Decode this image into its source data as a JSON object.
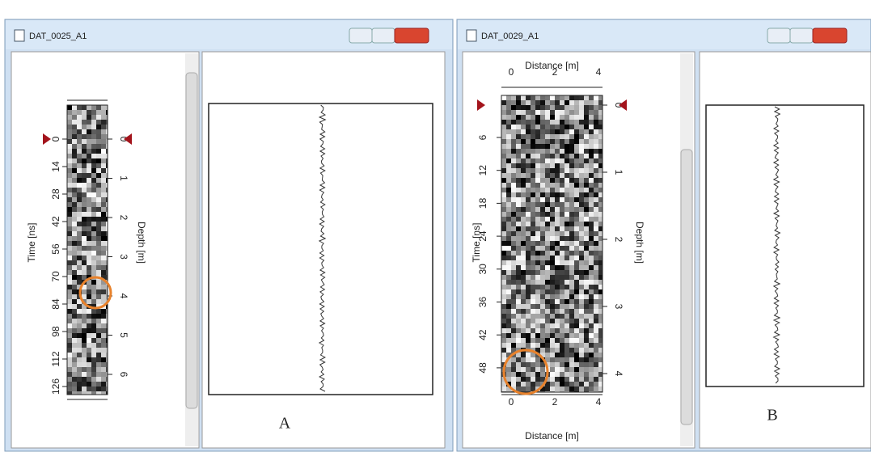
{
  "panels": [
    {
      "title": "DAT_0025_A1",
      "time_axis": {
        "label": "Time [ns]",
        "ticks": [
          "0",
          "14",
          "28",
          "42",
          "56",
          "70",
          "84",
          "98",
          "112",
          "126"
        ]
      },
      "depth_axis": {
        "label": "Depth [m]",
        "ticks": [
          "0",
          "1",
          "2",
          "3",
          "4",
          "5",
          "6"
        ]
      },
      "caption": "A"
    },
    {
      "title": "DAT_0029_A1",
      "time_axis": {
        "label": "Time [ns]",
        "ticks": [
          "6",
          "12",
          "18",
          "24",
          "30",
          "36",
          "42",
          "48"
        ]
      },
      "depth_axis": {
        "label": "Depth [m]",
        "ticks": [
          "0",
          "1",
          "2",
          "3",
          "4"
        ]
      },
      "distance_axis": {
        "label": "Distance [m]",
        "ticks": [
          "0",
          "2",
          "4"
        ]
      },
      "caption": "B"
    }
  ]
}
